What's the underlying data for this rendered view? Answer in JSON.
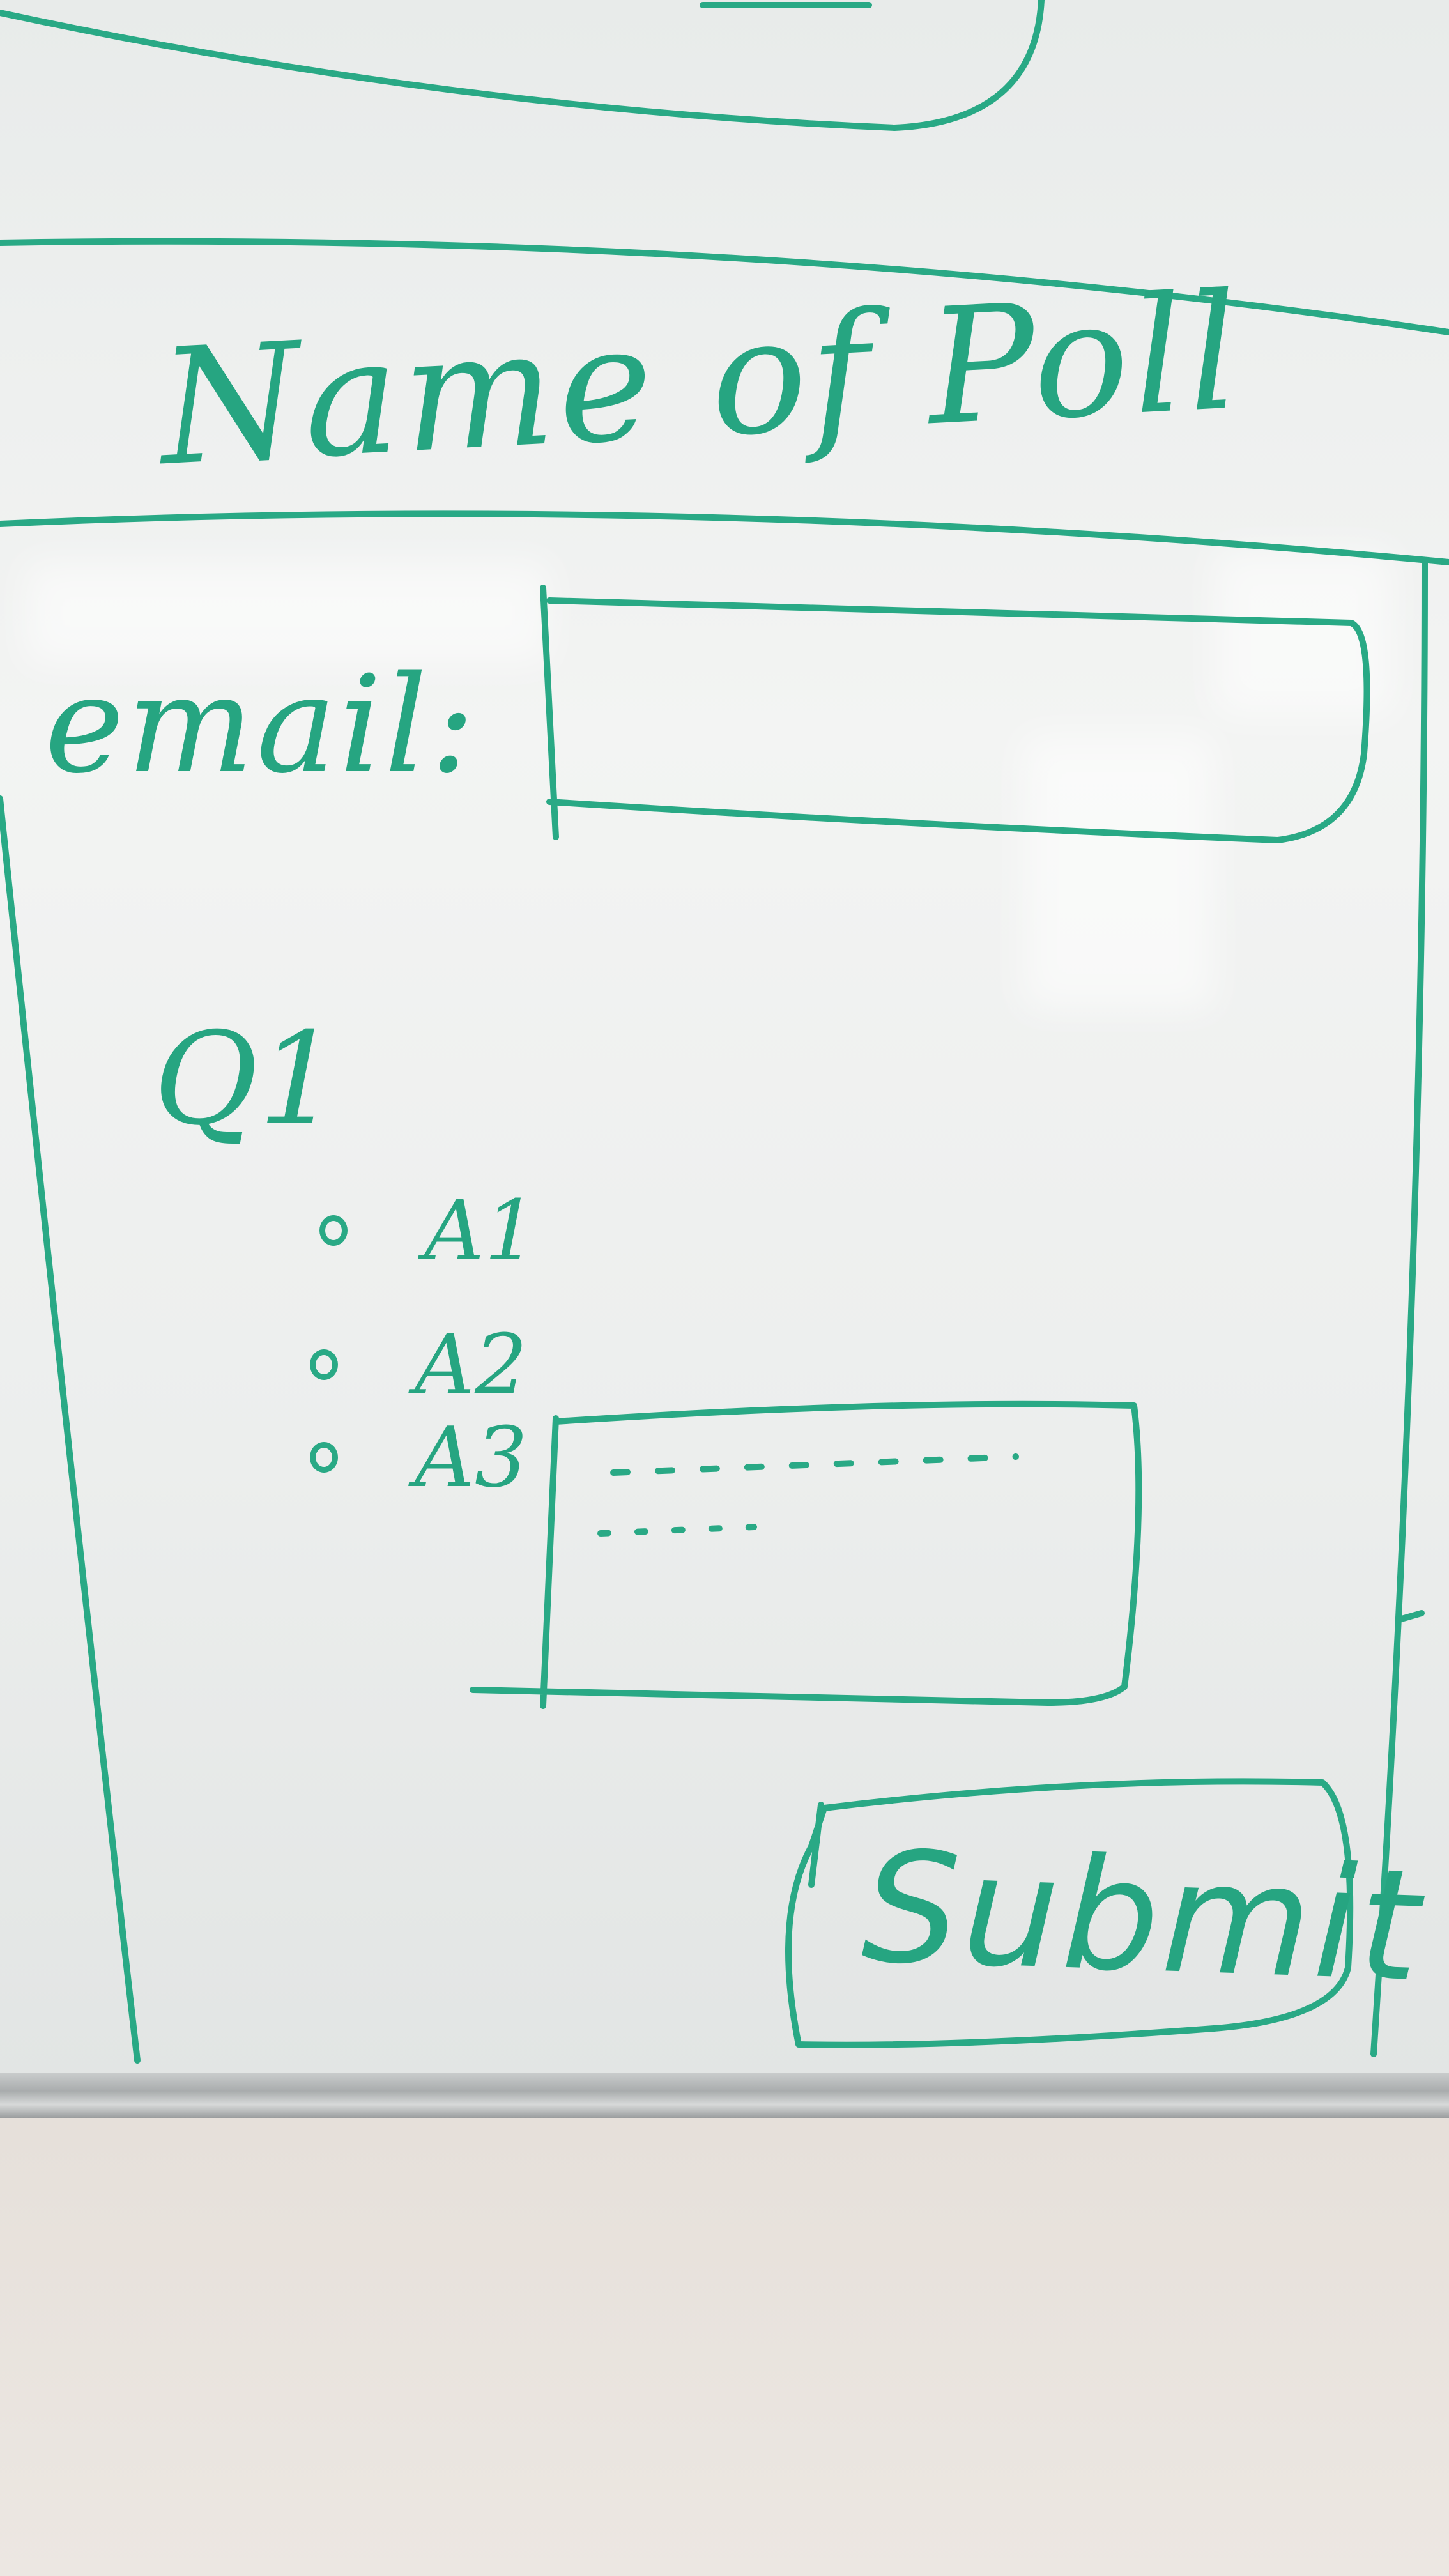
{
  "poll_form": {
    "title": "Name of Poll",
    "email_label": "email:",
    "question_label": "Q1",
    "answers": [
      {
        "label": "A1"
      },
      {
        "label": "A2"
      },
      {
        "label": "A3"
      }
    ],
    "submit_label": "Submit"
  },
  "colors": {
    "marker_ink": "#29a985",
    "whiteboard": "#eef0ef",
    "wall": "#e9e4df"
  }
}
